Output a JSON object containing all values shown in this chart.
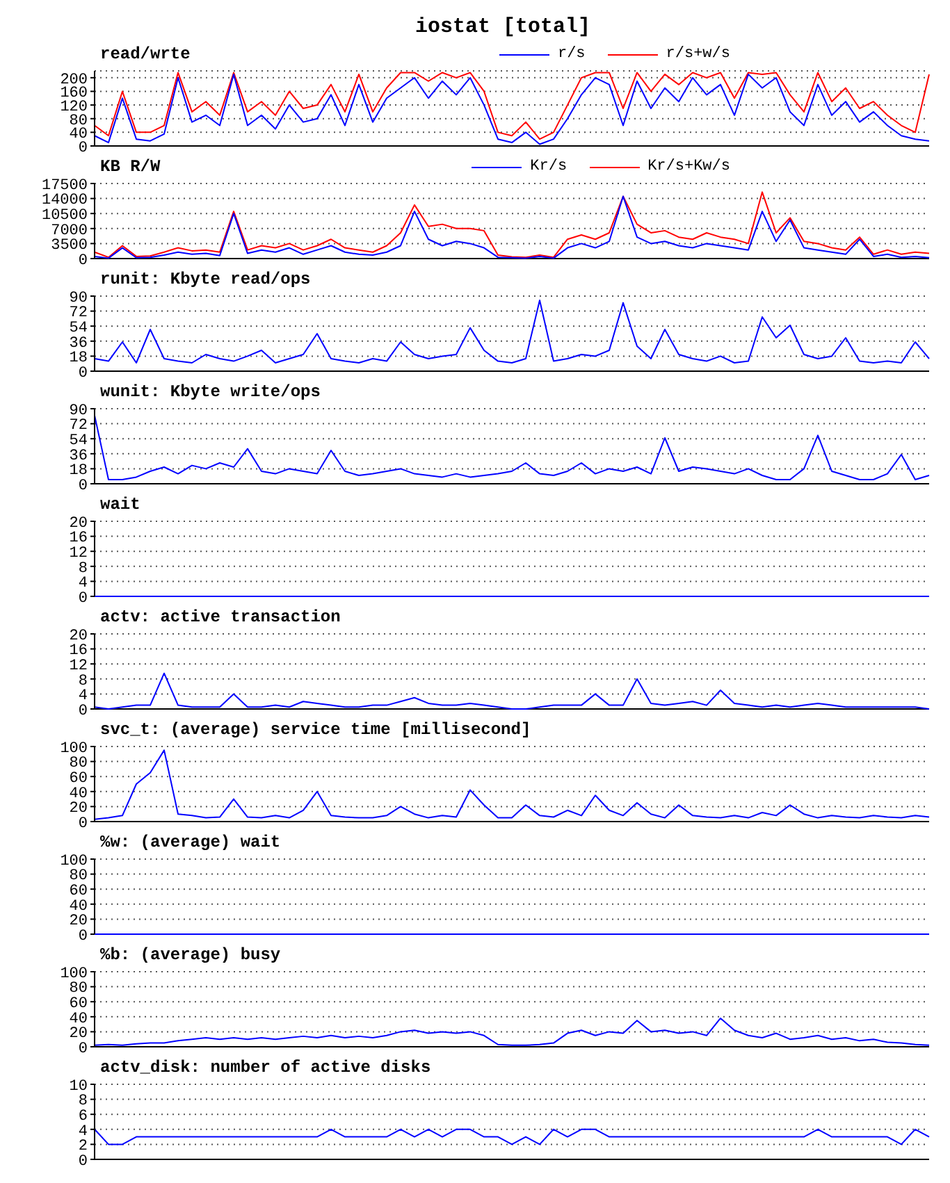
{
  "chart_data": [
    {
      "type": "line",
      "title": "iostat [total]",
      "subtitle": "read/wrte",
      "categories": [
        null,
        null,
        null,
        null,
        null,
        null,
        null,
        null,
        null,
        null,
        null,
        null,
        null,
        null,
        null,
        null,
        null,
        null,
        null,
        null,
        null,
        null,
        null,
        null,
        null,
        null,
        null,
        null,
        null,
        null,
        null,
        null,
        null,
        null,
        null,
        null,
        null,
        null,
        null,
        null,
        null,
        null,
        null,
        null,
        null,
        null,
        null,
        null,
        null,
        null,
        null,
        null,
        null,
        null,
        null,
        null,
        null,
        null,
        null,
        null,
        null
      ],
      "series": [
        {
          "name": "r/s+w/s",
          "color": "#ff0000",
          "values": [
            60,
            30,
            160,
            40,
            40,
            60,
            215,
            100,
            130,
            90,
            215,
            100,
            130,
            90,
            160,
            110,
            120,
            180,
            100,
            210,
            100,
            170,
            215,
            215,
            190,
            215,
            200,
            215,
            160,
            40,
            30,
            70,
            20,
            40,
            120,
            200,
            215,
            215,
            110,
            215,
            160,
            210,
            180,
            215,
            200,
            215,
            140,
            215,
            210,
            215,
            150,
            100,
            215,
            130,
            170,
            110,
            130,
            90,
            60,
            40,
            210
          ]
        },
        {
          "name": "r/s",
          "color": "#0000ff",
          "values": [
            30,
            10,
            140,
            20,
            15,
            35,
            200,
            70,
            90,
            60,
            210,
            60,
            90,
            50,
            120,
            70,
            80,
            150,
            60,
            180,
            70,
            140,
            170,
            200,
            140,
            190,
            150,
            200,
            120,
            20,
            10,
            40,
            5,
            20,
            80,
            150,
            200,
            180,
            60,
            190,
            110,
            170,
            130,
            200,
            150,
            180,
            90,
            210,
            170,
            200,
            100,
            60,
            180,
            90,
            130,
            70,
            100,
            60,
            30,
            20,
            15
          ]
        }
      ],
      "ylim": [
        0,
        220
      ],
      "yticks": [
        0,
        40,
        80,
        120,
        160,
        200
      ],
      "grid": "y",
      "legend": "top right",
      "marker": "none",
      "tick_labels": "y"
    },
    {
      "type": "line",
      "title": "KB R/W",
      "categories": [
        null,
        null,
        null,
        null,
        null,
        null,
        null,
        null,
        null,
        null,
        null,
        null,
        null,
        null,
        null,
        null,
        null,
        null,
        null,
        null,
        null,
        null,
        null,
        null,
        null,
        null,
        null,
        null,
        null,
        null,
        null,
        null,
        null,
        null,
        null,
        null,
        null,
        null,
        null,
        null,
        null,
        null,
        null,
        null,
        null,
        null,
        null,
        null,
        null,
        null,
        null,
        null,
        null,
        null,
        null,
        null,
        null,
        null,
        null,
        null,
        null
      ],
      "series": [
        {
          "name": "Kr/s+Kw/s",
          "color": "#ff0000",
          "values": [
            1500,
            300,
            3000,
            500,
            600,
            1500,
            2500,
            1800,
            2000,
            1500,
            11000,
            2000,
            3000,
            2500,
            3500,
            2000,
            3000,
            4500,
            2500,
            2000,
            1500,
            3000,
            6000,
            12500,
            7500,
            8000,
            7000,
            7000,
            6500,
            800,
            400,
            300,
            800,
            300,
            4500,
            5500,
            4500,
            6000,
            14500,
            8000,
            6000,
            6500,
            5000,
            4500,
            6000,
            5000,
            4500,
            3500,
            15500,
            6000,
            9500,
            4000,
            3500,
            2500,
            2000,
            5000,
            1000,
            2000,
            1000,
            1500,
            1200
          ]
        },
        {
          "name": "Kr/s",
          "color": "#0000ff",
          "values": [
            500,
            100,
            2500,
            200,
            300,
            800,
            1500,
            1000,
            1200,
            700,
            10500,
            1200,
            2000,
            1500,
            2500,
            1000,
            2000,
            3000,
            1500,
            1000,
            800,
            1500,
            3000,
            11000,
            4500,
            3000,
            4000,
            3500,
            2500,
            300,
            200,
            100,
            500,
            100,
            2500,
            3500,
            2500,
            4000,
            14500,
            5000,
            3500,
            4000,
            3000,
            2500,
            3500,
            3000,
            2500,
            2000,
            11000,
            4000,
            9000,
            2500,
            2000,
            1500,
            1000,
            4500,
            500,
            1000,
            300,
            500,
            200
          ]
        }
      ],
      "ylim": [
        0,
        17500
      ],
      "yticks": [
        0,
        3500,
        7000,
        10500,
        14000,
        17500
      ],
      "grid": "y",
      "legend": "top right",
      "marker": "none",
      "tick_labels": "y"
    },
    {
      "type": "line",
      "title": "runit: Kbyte read/ops",
      "categories": [
        null,
        null,
        null,
        null,
        null,
        null,
        null,
        null,
        null,
        null,
        null,
        null,
        null,
        null,
        null,
        null,
        null,
        null,
        null,
        null,
        null,
        null,
        null,
        null,
        null,
        null,
        null,
        null,
        null,
        null,
        null,
        null,
        null,
        null,
        null,
        null,
        null,
        null,
        null,
        null,
        null,
        null,
        null,
        null,
        null,
        null,
        null,
        null,
        null,
        null,
        null,
        null,
        null,
        null,
        null,
        null,
        null,
        null,
        null,
        null,
        null
      ],
      "series": [
        {
          "color": "#0000ff",
          "values": [
            15,
            12,
            35,
            10,
            50,
            15,
            12,
            10,
            20,
            15,
            12,
            18,
            25,
            10,
            15,
            20,
            45,
            15,
            12,
            10,
            15,
            12,
            35,
            20,
            15,
            18,
            20,
            52,
            25,
            12,
            10,
            15,
            85,
            12,
            15,
            20,
            18,
            25,
            82,
            30,
            15,
            50,
            20,
            15,
            12,
            18,
            10,
            12,
            65,
            40,
            55,
            20,
            15,
            18,
            40,
            12,
            10,
            12,
            10,
            35,
            15
          ]
        }
      ],
      "ylim": [
        0,
        90
      ],
      "yticks": [
        0,
        18,
        36,
        54,
        72,
        90
      ],
      "grid": "y",
      "marker": "none",
      "tick_labels": "y"
    },
    {
      "type": "line",
      "title": "wunit: Kbyte write/ops",
      "categories": [
        null,
        null,
        null,
        null,
        null,
        null,
        null,
        null,
        null,
        null,
        null,
        null,
        null,
        null,
        null,
        null,
        null,
        null,
        null,
        null,
        null,
        null,
        null,
        null,
        null,
        null,
        null,
        null,
        null,
        null,
        null,
        null,
        null,
        null,
        null,
        null,
        null,
        null,
        null,
        null,
        null,
        null,
        null,
        null,
        null,
        null,
        null,
        null,
        null,
        null,
        null,
        null,
        null,
        null,
        null,
        null,
        null,
        null,
        null,
        null,
        null
      ],
      "series": [
        {
          "color": "#0000ff",
          "values": [
            82,
            5,
            5,
            8,
            15,
            20,
            12,
            22,
            18,
            25,
            20,
            42,
            15,
            12,
            18,
            15,
            12,
            40,
            15,
            10,
            12,
            15,
            18,
            12,
            10,
            8,
            12,
            8,
            10,
            12,
            15,
            25,
            12,
            10,
            15,
            25,
            12,
            18,
            15,
            20,
            12,
            55,
            15,
            20,
            18,
            15,
            12,
            18,
            10,
            5,
            5,
            18,
            58,
            15,
            10,
            5,
            5,
            12,
            35,
            5,
            10
          ]
        }
      ],
      "ylim": [
        0,
        90
      ],
      "yticks": [
        0,
        18,
        36,
        54,
        72,
        90
      ],
      "grid": "y",
      "marker": "none",
      "tick_labels": "y"
    },
    {
      "type": "line",
      "title": "wait",
      "categories": [
        null,
        null,
        null,
        null,
        null,
        null,
        null,
        null,
        null,
        null,
        null,
        null,
        null,
        null,
        null,
        null,
        null,
        null,
        null,
        null,
        null,
        null,
        null,
        null,
        null,
        null,
        null,
        null,
        null,
        null,
        null,
        null,
        null,
        null,
        null,
        null,
        null,
        null,
        null,
        null,
        null,
        null,
        null,
        null,
        null,
        null,
        null,
        null,
        null,
        null,
        null,
        null,
        null,
        null,
        null,
        null,
        null,
        null,
        null,
        null,
        null
      ],
      "series": [
        {
          "color": "#0000ff",
          "values": [
            0,
            0,
            0,
            0,
            0,
            0,
            0,
            0,
            0,
            0,
            0,
            0,
            0,
            0,
            0,
            0,
            0,
            0,
            0,
            0,
            0,
            0,
            0,
            0,
            0,
            0,
            0,
            0,
            0,
            0,
            0,
            0,
            0,
            0,
            0,
            0,
            0,
            0,
            0,
            0,
            0,
            0,
            0,
            0,
            0,
            0,
            0,
            0,
            0,
            0,
            0,
            0,
            0,
            0,
            0,
            0,
            0,
            0,
            0,
            0,
            0
          ]
        }
      ],
      "ylim": [
        0,
        20
      ],
      "yticks": [
        0,
        4,
        8,
        12,
        16,
        20
      ],
      "grid": "y",
      "marker": "none",
      "tick_labels": "y"
    },
    {
      "type": "line",
      "title": "actv: active transaction",
      "categories": [
        null,
        null,
        null,
        null,
        null,
        null,
        null,
        null,
        null,
        null,
        null,
        null,
        null,
        null,
        null,
        null,
        null,
        null,
        null,
        null,
        null,
        null,
        null,
        null,
        null,
        null,
        null,
        null,
        null,
        null,
        null,
        null,
        null,
        null,
        null,
        null,
        null,
        null,
        null,
        null,
        null,
        null,
        null,
        null,
        null,
        null,
        null,
        null,
        null,
        null,
        null,
        null,
        null,
        null,
        null,
        null,
        null,
        null,
        null,
        null,
        null
      ],
      "series": [
        {
          "color": "#0000ff",
          "values": [
            0.5,
            0,
            0.5,
            1,
            1,
            9.5,
            1,
            0.5,
            0.5,
            0.5,
            4,
            0.5,
            0.5,
            1,
            0.5,
            2,
            1.5,
            1,
            0.5,
            0.5,
            1,
            1,
            2,
            3,
            1.5,
            1,
            1,
            1.5,
            1,
            0.5,
            0,
            0,
            0.5,
            1,
            1,
            1,
            4,
            1,
            1,
            8,
            1.5,
            1,
            1.5,
            2,
            1,
            5,
            1.5,
            1,
            0.5,
            1,
            0.5,
            1,
            1.5,
            1,
            0.5,
            0.5,
            0.5,
            0.5,
            0.5,
            0.5,
            0
          ]
        }
      ],
      "ylim": [
        0,
        20
      ],
      "yticks": [
        0,
        4,
        8,
        12,
        16,
        20
      ],
      "grid": "y",
      "marker": "none",
      "tick_labels": "y"
    },
    {
      "type": "line",
      "title": "svc_t: (average) service time [millisecond]",
      "categories": [
        null,
        null,
        null,
        null,
        null,
        null,
        null,
        null,
        null,
        null,
        null,
        null,
        null,
        null,
        null,
        null,
        null,
        null,
        null,
        null,
        null,
        null,
        null,
        null,
        null,
        null,
        null,
        null,
        null,
        null,
        null,
        null,
        null,
        null,
        null,
        null,
        null,
        null,
        null,
        null,
        null,
        null,
        null,
        null,
        null,
        null,
        null,
        null,
        null,
        null,
        null,
        null,
        null,
        null,
        null,
        null,
        null,
        null,
        null,
        null,
        null
      ],
      "series": [
        {
          "color": "#0000ff",
          "values": [
            3,
            5,
            8,
            50,
            65,
            95,
            10,
            8,
            5,
            6,
            30,
            6,
            5,
            8,
            5,
            15,
            40,
            8,
            6,
            5,
            5,
            8,
            20,
            10,
            5,
            8,
            6,
            42,
            22,
            5,
            5,
            22,
            8,
            6,
            15,
            8,
            35,
            15,
            8,
            25,
            10,
            5,
            22,
            8,
            6,
            5,
            8,
            5,
            12,
            8,
            22,
            10,
            5,
            8,
            6,
            5,
            8,
            6,
            5,
            8,
            6
          ]
        }
      ],
      "ylim": [
        0,
        100
      ],
      "yticks": [
        0,
        20,
        40,
        60,
        80,
        100
      ],
      "grid": "y",
      "marker": "none",
      "tick_labels": "y"
    },
    {
      "type": "line",
      "title": "%w: (average) wait",
      "categories": [
        null,
        null,
        null,
        null,
        null,
        null,
        null,
        null,
        null,
        null,
        null,
        null,
        null,
        null,
        null,
        null,
        null,
        null,
        null,
        null,
        null,
        null,
        null,
        null,
        null,
        null,
        null,
        null,
        null,
        null,
        null,
        null,
        null,
        null,
        null,
        null,
        null,
        null,
        null,
        null,
        null,
        null,
        null,
        null,
        null,
        null,
        null,
        null,
        null,
        null,
        null,
        null,
        null,
        null,
        null,
        null,
        null,
        null,
        null,
        null,
        null
      ],
      "series": [
        {
          "color": "#0000ff",
          "values": [
            0,
            0,
            0,
            0,
            0,
            0,
            0,
            0,
            0,
            0,
            0,
            0,
            0,
            0,
            0,
            0,
            0,
            0,
            0,
            0,
            0,
            0,
            0,
            0,
            0,
            0,
            0,
            0,
            0,
            0,
            0,
            0,
            0,
            0,
            0,
            0,
            0,
            0,
            0,
            0,
            0,
            0,
            0,
            0,
            0,
            0,
            0,
            0,
            0,
            0,
            0,
            0,
            0,
            0,
            0,
            0,
            0,
            0,
            0,
            0,
            0
          ]
        }
      ],
      "ylim": [
        0,
        100
      ],
      "yticks": [
        0,
        20,
        40,
        60,
        80,
        100
      ],
      "grid": "y",
      "marker": "none",
      "tick_labels": "y"
    },
    {
      "type": "line",
      "title": "%b: (average) busy",
      "categories": [
        null,
        null,
        null,
        null,
        null,
        null,
        null,
        null,
        null,
        null,
        null,
        null,
        null,
        null,
        null,
        null,
        null,
        null,
        null,
        null,
        null,
        null,
        null,
        null,
        null,
        null,
        null,
        null,
        null,
        null,
        null,
        null,
        null,
        null,
        null,
        null,
        null,
        null,
        null,
        null,
        null,
        null,
        null,
        null,
        null,
        null,
        null,
        null,
        null,
        null,
        null,
        null,
        null,
        null,
        null,
        null,
        null,
        null,
        null,
        null,
        null
      ],
      "series": [
        {
          "color": "#0000ff",
          "values": [
            2,
            3,
            2,
            4,
            5,
            5,
            8,
            10,
            12,
            10,
            12,
            10,
            12,
            10,
            12,
            14,
            12,
            15,
            12,
            14,
            12,
            15,
            20,
            22,
            18,
            20,
            18,
            20,
            15,
            3,
            2,
            2,
            3,
            5,
            18,
            22,
            15,
            20,
            18,
            35,
            20,
            22,
            18,
            20,
            15,
            38,
            22,
            15,
            12,
            18,
            10,
            12,
            15,
            10,
            12,
            8,
            10,
            6,
            5,
            3,
            2
          ]
        }
      ],
      "ylim": [
        0,
        100
      ],
      "yticks": [
        0,
        20,
        40,
        60,
        80,
        100
      ],
      "grid": "y",
      "marker": "none",
      "tick_labels": "y"
    },
    {
      "type": "line",
      "title": "actv_disk: number of active disks",
      "categories": [
        null,
        null,
        null,
        null,
        null,
        null,
        null,
        null,
        null,
        null,
        null,
        null,
        null,
        null,
        null,
        null,
        null,
        null,
        null,
        null,
        null,
        null,
        null,
        null,
        null,
        null,
        null,
        null,
        null,
        null,
        null,
        null,
        null,
        null,
        null,
        null,
        null,
        null,
        null,
        null,
        null,
        null,
        null,
        null,
        null,
        null,
        null,
        null,
        null,
        null,
        null,
        null,
        null,
        null,
        null,
        null,
        null,
        null,
        null,
        null,
        null
      ],
      "series": [
        {
          "color": "#0000ff",
          "values": [
            4,
            2,
            2,
            3,
            3,
            3,
            3,
            3,
            3,
            3,
            3,
            3,
            3,
            3,
            3,
            3,
            3,
            4,
            3,
            3,
            3,
            3,
            4,
            3,
            4,
            3,
            4,
            4,
            3,
            3,
            2,
            3,
            2,
            4,
            3,
            4,
            4,
            3,
            3,
            3,
            3,
            3,
            3,
            3,
            3,
            3,
            3,
            3,
            3,
            3,
            3,
            3,
            4,
            3,
            3,
            3,
            3,
            3,
            2,
            4,
            3
          ]
        }
      ],
      "ylim": [
        0,
        10
      ],
      "yticks": [
        0,
        2,
        4,
        6,
        8,
        10
      ],
      "grid": "y",
      "marker": "none",
      "tick_labels": "y"
    }
  ]
}
